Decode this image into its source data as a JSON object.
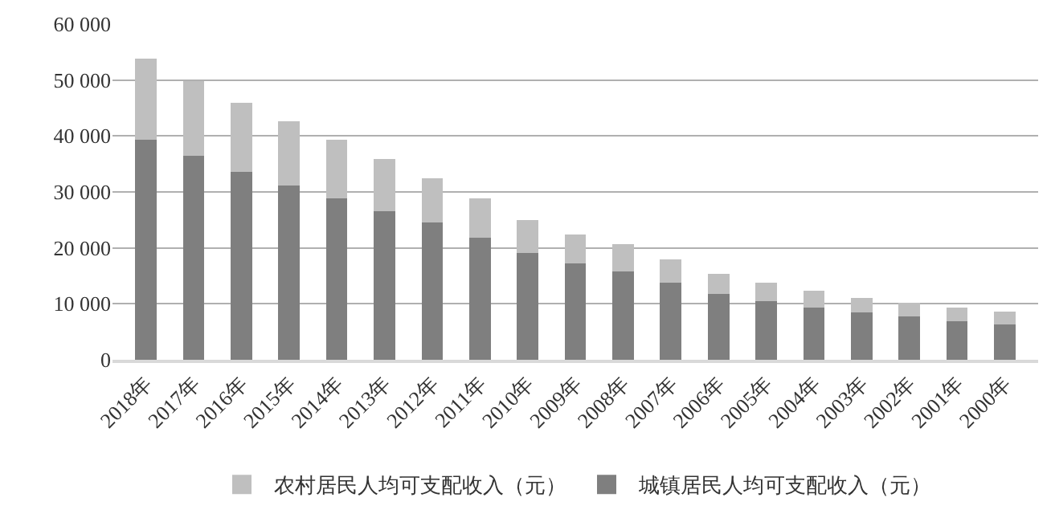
{
  "chart_data": {
    "type": "bar",
    "stacked": true,
    "categories": [
      "2018年",
      "2017年",
      "2016年",
      "2015年",
      "2014年",
      "2013年",
      "2012年",
      "2011年",
      "2010年",
      "2009年",
      "2008年",
      "2007年",
      "2006年",
      "2005年",
      "2004年",
      "2003年",
      "2002年",
      "2001年",
      "2000年"
    ],
    "series": [
      {
        "name": "城镇居民人均可支配收入（元）",
        "color": "#7f7f7f",
        "values": [
          39300,
          36400,
          33600,
          31200,
          28800,
          26500,
          24600,
          21800,
          19100,
          17200,
          15800,
          13800,
          11800,
          10500,
          9400,
          8500,
          7700,
          6900,
          6300
        ]
      },
      {
        "name": "农村居民人均可支配收入（元）",
        "color": "#bfbfbf",
        "values": [
          14600,
          13400,
          12400,
          11400,
          10500,
          9400,
          7900,
          7000,
          5900,
          5200,
          4800,
          4100,
          3600,
          3300,
          2900,
          2600,
          2500,
          2400,
          2300
        ]
      }
    ],
    "ylim": [
      0,
      60000
    ],
    "yticks": [
      0,
      {
        "value": 10000,
        "label": "10 000"
      },
      {
        "value": 20000,
        "label": "20 000"
      },
      {
        "value": 30000,
        "label": "30 000"
      },
      {
        "value": 40000,
        "label": "40 000"
      },
      {
        "value": 50000,
        "label": "50 000"
      },
      {
        "value": 60000,
        "label": "60 000"
      }
    ],
    "grid": "y",
    "legend": "bottom"
  }
}
